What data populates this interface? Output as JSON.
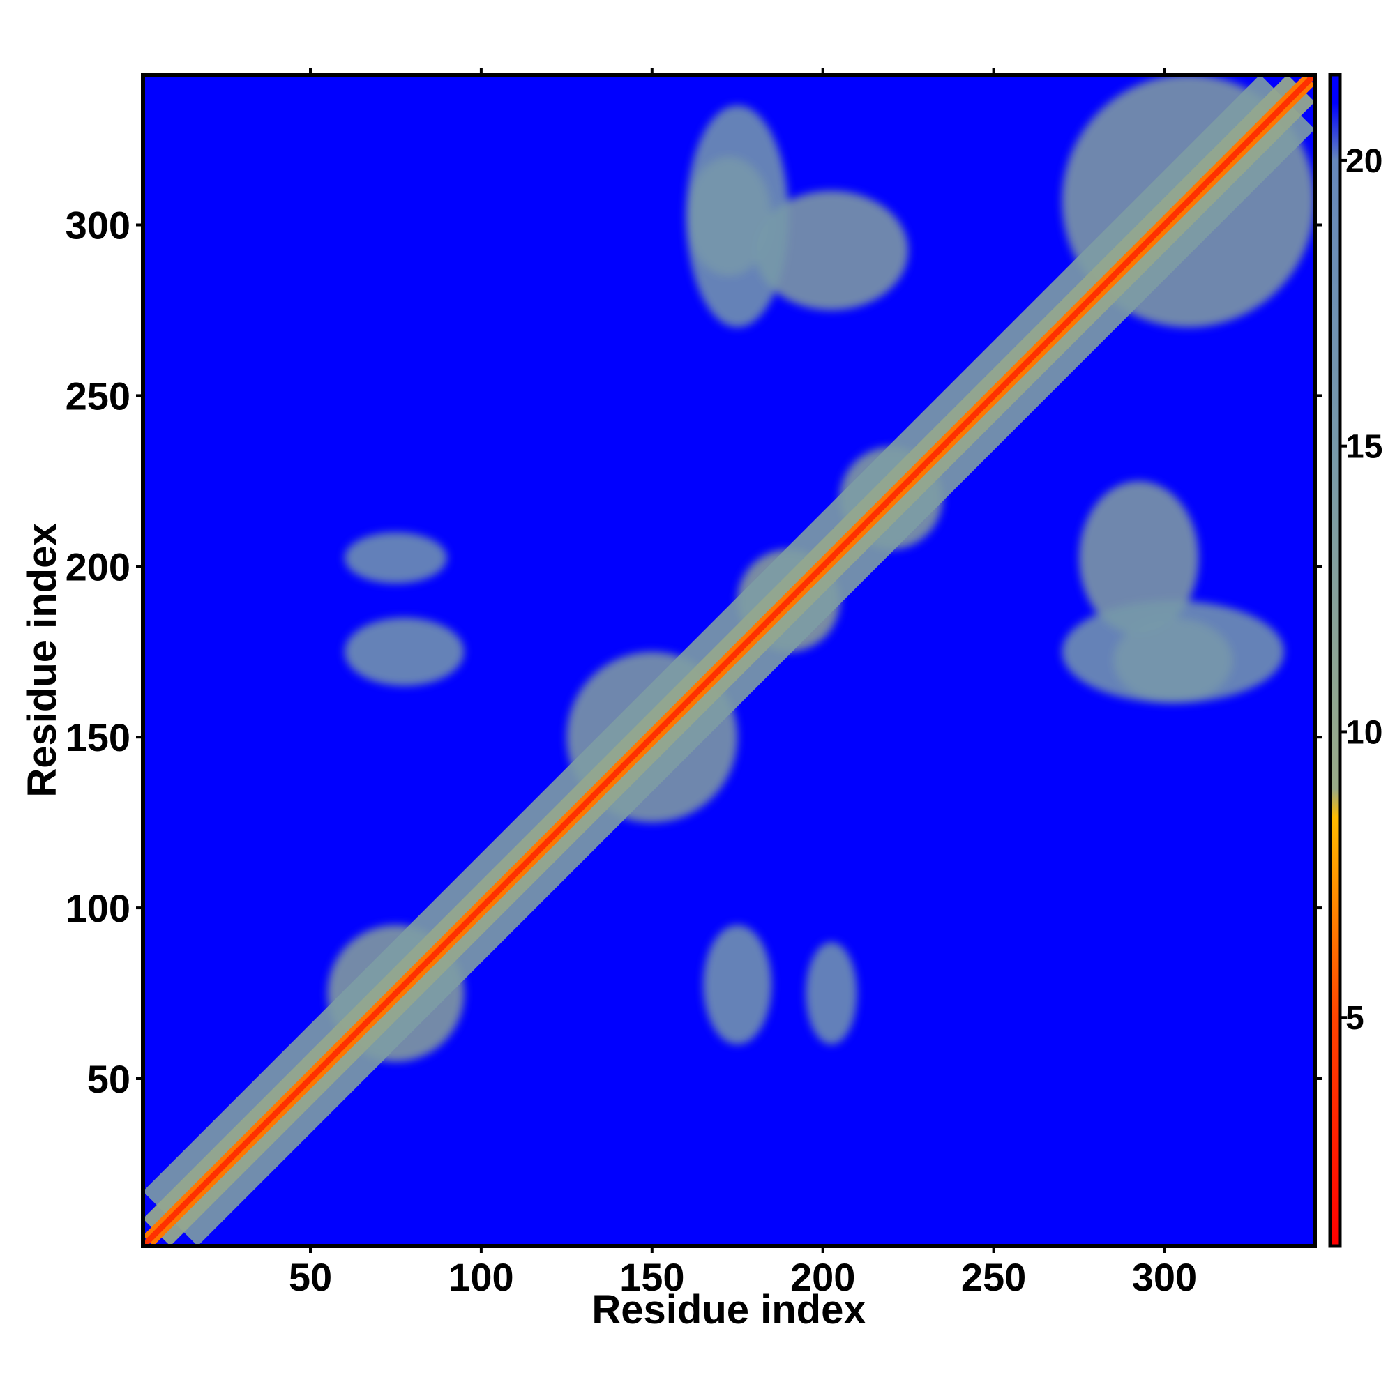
{
  "chart_data": {
    "type": "heatmap",
    "title": "",
    "xlabel": "Residue index",
    "ylabel": "Residue index",
    "xlim": [
      1,
      344
    ],
    "ylim": [
      1,
      344
    ],
    "x_ticks": [
      50,
      100,
      150,
      200,
      250,
      300
    ],
    "y_ticks": [
      50,
      100,
      150,
      200,
      250,
      300
    ],
    "colorbar": {
      "ticks": [
        5,
        10,
        15,
        20
      ],
      "range": [
        1,
        21.5
      ],
      "stops": [
        {
          "value": 1.0,
          "color": "#ff0000"
        },
        {
          "value": 5.0,
          "color": "#ff4400"
        },
        {
          "value": 7.0,
          "color": "#ff8800"
        },
        {
          "value": 8.5,
          "color": "#ffbb00"
        },
        {
          "value": 9.0,
          "color": "#99aa88"
        },
        {
          "value": 15.0,
          "color": "#7799aa"
        },
        {
          "value": 20.0,
          "color": "#6688bb"
        },
        {
          "value": 21.0,
          "color": "#0000ff"
        }
      ]
    },
    "background_value": 21,
    "background_color": "#0000ff",
    "diagonal": {
      "core_value": 3.8,
      "band_width": 3
    },
    "contact_regions": [
      {
        "x": [
          55,
          95
        ],
        "y": [
          55,
          95
        ],
        "level": 12
      },
      {
        "x": [
          125,
          175
        ],
        "y": [
          125,
          175
        ],
        "level": 13
      },
      {
        "x": [
          175,
          205
        ],
        "y": [
          175,
          205
        ],
        "level": 11
      },
      {
        "x": [
          205,
          235
        ],
        "y": [
          205,
          235
        ],
        "level": 12
      },
      {
        "x": [
          270,
          344
        ],
        "y": [
          270,
          344
        ],
        "level": 13
      },
      {
        "x": [
          180,
          225
        ],
        "y": [
          275,
          310
        ],
        "level": 13
      },
      {
        "x": [
          275,
          310
        ],
        "y": [
          180,
          225
        ],
        "level": 13
      },
      {
        "x": [
          160,
          185
        ],
        "y": [
          285,
          320
        ],
        "level": 15
      },
      {
        "x": [
          285,
          320
        ],
        "y": [
          160,
          185
        ],
        "level": 15
      },
      {
        "x": [
          60,
          95
        ],
        "y": [
          165,
          185
        ],
        "level": 15
      },
      {
        "x": [
          165,
          185
        ],
        "y": [
          60,
          95
        ],
        "level": 15
      },
      {
        "x": [
          60,
          90
        ],
        "y": [
          195,
          210
        ],
        "level": 16
      },
      {
        "x": [
          195,
          210
        ],
        "y": [
          60,
          90
        ],
        "level": 16
      },
      {
        "x": [
          270,
          335
        ],
        "y": [
          160,
          190
        ],
        "level": 15
      },
      {
        "x": [
          160,
          190
        ],
        "y": [
          270,
          335
        ],
        "level": 15
      }
    ]
  }
}
